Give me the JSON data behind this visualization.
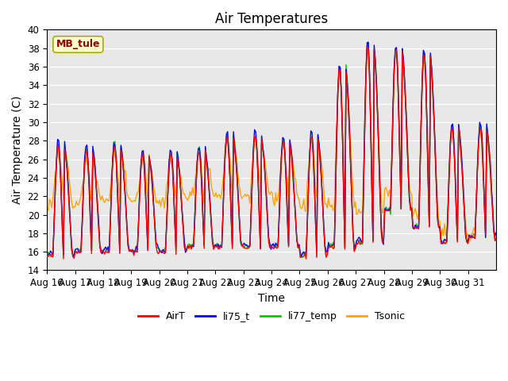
{
  "title": "Air Temperatures",
  "xlabel": "Time",
  "ylabel": "Air Temperature (C)",
  "ylim": [
    14,
    40
  ],
  "yticks": [
    14,
    16,
    18,
    20,
    22,
    24,
    26,
    28,
    30,
    32,
    34,
    36,
    38,
    40
  ],
  "xtick_labels": [
    "Aug 16",
    "Aug 17",
    "Aug 18",
    "Aug 19",
    "Aug 20",
    "Aug 21",
    "Aug 22",
    "Aug 23",
    "Aug 24",
    "Aug 25",
    "Aug 26",
    "Aug 27",
    "Aug 28",
    "Aug 29",
    "Aug 30",
    "Aug 31"
  ],
  "annotation_text": "MB_tule",
  "annotation_color": "#8B0000",
  "annotation_bg": "#FFFFCC",
  "line_colors": {
    "AirT": "#FF0000",
    "li75_t": "#0000FF",
    "li77_temp": "#00CC00",
    "Tsonic": "#FFA500"
  },
  "legend_labels": [
    "AirT",
    "li75_t",
    "li77_temp",
    "Tsonic"
  ],
  "background_color": "#E8E8E8",
  "title_fontsize": 12,
  "axis_fontsize": 10,
  "tick_fontsize": 8.5,
  "day_mins_AirT": [
    15.5,
    16.0,
    16.0,
    16.0,
    16.0,
    16.5,
    16.5,
    16.5,
    16.5,
    15.5,
    16.5,
    17.0,
    20.5,
    18.5,
    17.0,
    17.5
  ],
  "day_maxs_AirT": [
    27.5,
    27.0,
    27.5,
    26.5,
    26.5,
    27.0,
    28.5,
    28.5,
    28.0,
    28.5,
    36.0,
    38.5,
    38.0,
    37.5,
    29.5,
    29.5
  ],
  "tsonic_min_offsets": [
    5.5,
    5.5,
    5.5,
    5.5,
    5.5,
    5.5,
    5.5,
    5.5,
    5.5,
    5.5,
    4.5,
    3.0,
    2.0,
    1.5,
    1.0,
    0.5
  ],
  "tsonic_max_offsets": [
    0.5,
    1.0,
    0.5,
    0.5,
    0.5,
    0.5,
    0.5,
    0.5,
    0.5,
    0.5,
    0.5,
    0.5,
    0.5,
    0.5,
    0.5,
    0.5
  ]
}
